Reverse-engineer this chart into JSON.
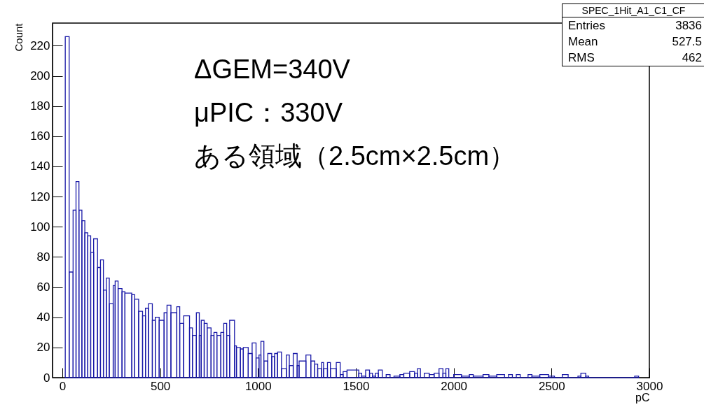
{
  "chart_data": {
    "type": "histogram",
    "xlabel": "pC",
    "ylabel": "Count",
    "color": "#1a1aa8",
    "xlim": [
      -50,
      3000
    ],
    "xticks": [
      0,
      500,
      1000,
      1500,
      2000,
      2500,
      3000
    ],
    "ylim": [
      0,
      235
    ],
    "yticks": [
      0,
      20,
      40,
      60,
      80,
      100,
      120,
      140,
      160,
      180,
      200,
      220
    ],
    "grid": false,
    "bins": [
      15,
      35,
      55,
      70,
      85,
      100,
      115,
      130,
      145,
      160,
      180,
      195,
      210,
      225,
      240,
      260,
      270,
      285,
      305,
      320,
      355,
      370,
      390,
      410,
      425,
      440,
      460,
      475,
      495,
      520,
      535,
      555,
      585,
      600,
      620,
      650,
      665,
      685,
      700,
      710,
      725,
      740,
      760,
      775,
      790,
      810,
      825,
      840,
      855,
      880,
      890,
      910,
      925,
      950,
      970,
      990,
      1005,
      1015,
      1030,
      1050,
      1070,
      1085,
      1100,
      1120,
      1145,
      1160,
      1180,
      1200,
      1210,
      1245,
      1270,
      1290,
      1305,
      1325,
      1335,
      1355,
      1370,
      1400,
      1420,
      1435,
      1455,
      1515,
      1530,
      1550,
      1570,
      1585,
      1600,
      1615,
      1635,
      1655,
      1675,
      1695,
      1725,
      1745,
      1775,
      1800,
      1815,
      1830,
      1850,
      1875,
      1900,
      1925,
      1945,
      1960,
      1975,
      2000,
      2040,
      2080,
      2100,
      2150,
      2180,
      2220,
      2260,
      2280,
      2300,
      2320,
      2340,
      2380,
      2400,
      2440,
      2485,
      2515,
      2555,
      2585,
      2635,
      2650,
      2675,
      2690,
      2925,
      2945
    ],
    "values": [
      226,
      70,
      111,
      130,
      111,
      104,
      96,
      94,
      83,
      92,
      73,
      78,
      58,
      66,
      49,
      61,
      64,
      59,
      57,
      56,
      55,
      52,
      44,
      41,
      46,
      49,
      38,
      40,
      38,
      43,
      48,
      43,
      47,
      36,
      41,
      33,
      28,
      43,
      28,
      38,
      36,
      33,
      28,
      30,
      28,
      30,
      36,
      28,
      38,
      21,
      20,
      19,
      20,
      16,
      23,
      13,
      15,
      24,
      11,
      16,
      14,
      16,
      17,
      6,
      15,
      8,
      16,
      8,
      11,
      15,
      11,
      9,
      6,
      10,
      6,
      10,
      6,
      10,
      2,
      4,
      5,
      3,
      1,
      5,
      3,
      1,
      3,
      5,
      0,
      2,
      0,
      1,
      2,
      3,
      4,
      3,
      6,
      0,
      3,
      2,
      3,
      6,
      3,
      6,
      0,
      2,
      1,
      2,
      1,
      2,
      1,
      2,
      0,
      2,
      0,
      2,
      0,
      2,
      1,
      2,
      1,
      0,
      2,
      0,
      1,
      3,
      1,
      0,
      1
    ],
    "annotations": [
      "ΔGEM=340V",
      "μPIC：330V",
      "ある領域（2.5cm×2.5cm）",
      "SPEC_1Hit_A1_C1_CF",
      "Entries",
      "3836",
      "Mean",
      "527.5",
      "RMS",
      "462"
    ]
  }
}
